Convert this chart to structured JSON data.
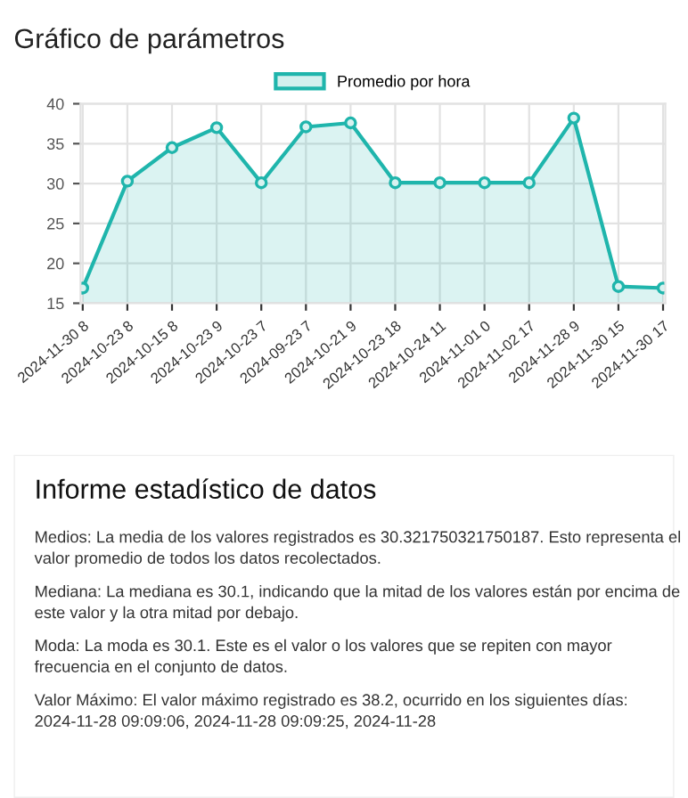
{
  "chart_data": [
    {
      "type": "area",
      "title": "Gráfico de parámetros",
      "categories": [
        "2024-11-30 8",
        "2024-10-23 8",
        "2024-10-15 8",
        "2024-10-23 9",
        "2024-10-23 7",
        "2024-09-23 7",
        "2024-10-21 9",
        "2024-10-23 18",
        "2024-10-24 11",
        "2024-11-01 0",
        "2024-11-02 17",
        "2024-11-28 9",
        "2024-11-30 15",
        "2024-11-30 17"
      ],
      "series": [
        {
          "name": "Promedio por hora",
          "color": "#1fb5ac",
          "values": [
            16.9,
            30.3,
            34.5,
            37,
            30.1,
            37.1,
            37.6,
            30.1,
            30.1,
            30.1,
            30.1,
            38.2,
            17.1,
            16.9
          ]
        }
      ],
      "ylim": [
        15,
        40
      ],
      "yticks": [
        15,
        20,
        25,
        30,
        35,
        40
      ],
      "grid": true,
      "legend": "top",
      "marker": "circle",
      "line_style": "solid"
    },
    {
      "type": "other",
      "title": "Informe estadístico de datos",
      "annotations": [
        "Medios: La media de los valores registrados es 30.321750321750187. Esto representa el valor promedio de todos los datos recolectados.",
        "Mediana: La mediana es 30.1, indicando que la mitad de los valores están por encima de este valor y la otra mitad por debajo.",
        "Moda: La moda es 30.1. Este es el valor o los valores que se repiten con mayor frecuencia en el conjunto de datos.",
        "Valor Máximo: El valor máximo registrado es 38.2, ocurrido en los siguientes días: 2024-11-28 09:09:06, 2024-11-28 09:09:25, 2024-11-28"
      ]
    }
  ]
}
